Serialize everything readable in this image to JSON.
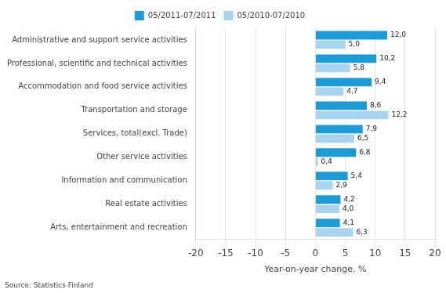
{
  "chart_data": {
    "type": "bar",
    "orientation": "horizontal",
    "categories": [
      "Administrative and support service activities",
      "Professional, scientific and technical activities",
      "Accommodation and food service activities",
      "Transportation and storage",
      "Services, total(excl. Trade)",
      "Other service activities",
      "Information and communication",
      "Real estate activities",
      "Arts, entertainment and recreation"
    ],
    "series": [
      {
        "name": "05/2011-07/2011",
        "color": "#1B9CD9",
        "values": [
          12.0,
          10.2,
          9.4,
          8.6,
          7.9,
          6.8,
          5.4,
          4.2,
          4.1
        ],
        "value_labels": [
          "12,0",
          "10,2",
          "9,4",
          "8,6",
          "7,9",
          "6,8",
          "5,4",
          "4,2",
          "4,1"
        ]
      },
      {
        "name": "05/2010-07/2010",
        "color": "#A8D4F0",
        "values": [
          5.0,
          5.8,
          4.7,
          12.2,
          6.5,
          0.4,
          2.9,
          4.0,
          6.3
        ],
        "value_labels": [
          "5,0",
          "5,8",
          "4,7",
          "12,2",
          "6,5",
          "0,4",
          "2,9",
          "4,0",
          "6,3"
        ]
      }
    ],
    "xlabel": "Year-on-year change, %",
    "xlim": [
      -20,
      20
    ],
    "xticks": [
      -20,
      -15,
      -10,
      -5,
      0,
      5,
      10,
      15,
      20
    ],
    "grid": true,
    "legend": "top",
    "data_labels": true,
    "annotations": [
      "Source: Statistics Finland"
    ]
  }
}
